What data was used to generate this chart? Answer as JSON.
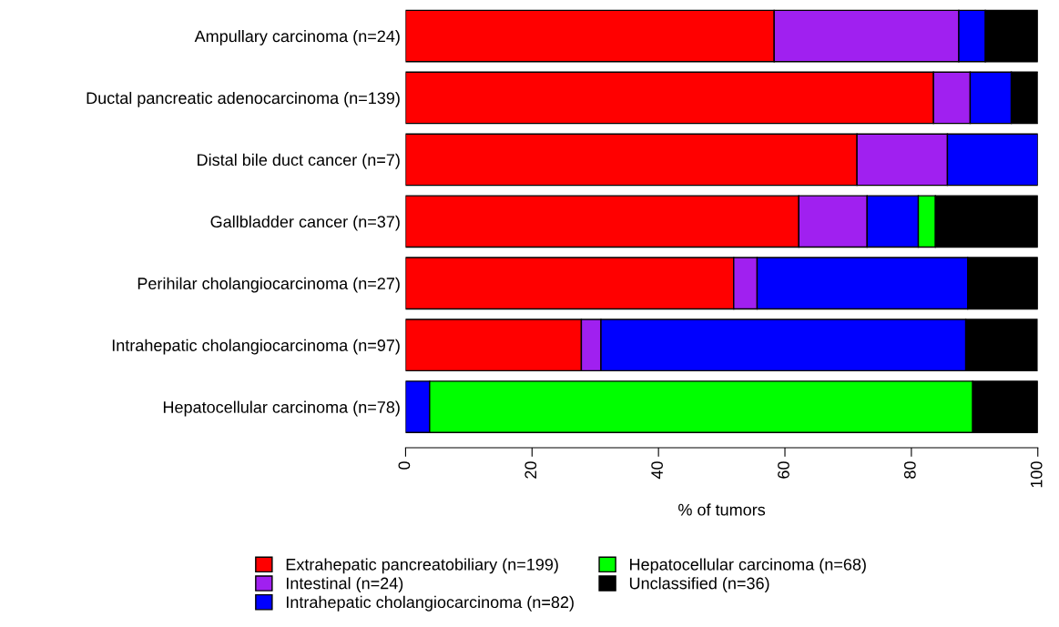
{
  "chart_data": {
    "type": "bar",
    "orientation": "horizontal",
    "stacked": true,
    "xlabel": "% of tumors",
    "categories": [
      "Ampullary carcinoma (n=24)",
      "Ductal pancreatic adenocarcinoma (n=139)",
      "Distal bile duct cancer (n=7)",
      "Gallbladder cancer (n=37)",
      "Perihilar cholangiocarcinoma (n=27)",
      "Intrahepatic cholangiocarcinoma (n=97)",
      "Hepatocellular carcinoma (n=78)"
    ],
    "series": [
      {
        "name": "Extrahepatic pancreatobiliary (n=199)",
        "color": "#ff0000",
        "values": [
          58.3,
          83.5,
          71.4,
          62.2,
          51.9,
          27.8,
          0
        ]
      },
      {
        "name": "Intestinal (n=24)",
        "color": "#a020f0",
        "values": [
          29.2,
          5.8,
          14.3,
          10.8,
          3.7,
          3.1,
          0
        ]
      },
      {
        "name": "Intrahepatic cholangiocarcinoma (n=82)",
        "color": "#0000ff",
        "values": [
          4.2,
          6.5,
          14.3,
          8.1,
          33.3,
          57.7,
          3.8
        ]
      },
      {
        "name": "Hepatocellular carcinoma (n=68)",
        "color": "#00ff00",
        "values": [
          0,
          0,
          0,
          2.7,
          0,
          0,
          85.9
        ]
      },
      {
        "name": "Unclassified (n=36)",
        "color": "#000000",
        "values": [
          8.3,
          4.3,
          0,
          16.2,
          11.1,
          11.3,
          10.3
        ]
      }
    ],
    "xlim": [
      0,
      100
    ],
    "xticks": [
      0,
      20,
      40,
      60,
      80,
      100
    ],
    "grid": false,
    "legend": "bottom"
  }
}
